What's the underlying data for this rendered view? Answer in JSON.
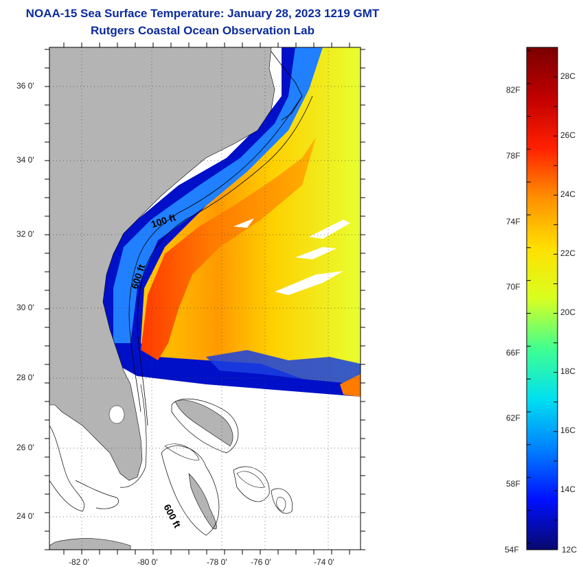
{
  "header": {
    "title_line1": "NOAA-15 Sea Surface Temperature:  January 28, 2023 1219 GMT",
    "title_line2": "Rutgers Coastal Ocean Observation Lab"
  },
  "map": {
    "lat_labels": [
      "36 0'",
      "34 0'",
      "32 0'",
      "30 0'",
      "28 0'",
      "26 0'",
      "24 0'"
    ],
    "lon_labels": [
      "-82 0'",
      "-80 0'",
      "-78 0'",
      "-76 0'",
      "-74 0'"
    ],
    "isobath_labels": [
      "100 ft",
      "600 ft",
      "600 ft"
    ],
    "land_color": "#b4b4b4",
    "nodata_color": "#ffffff"
  },
  "colorbar": {
    "fahrenheit_labels": [
      "82F",
      "78F",
      "74F",
      "70F",
      "66F",
      "62F",
      "58F",
      "54F"
    ],
    "celsius_labels": [
      "28C",
      "26C",
      "24C",
      "22C",
      "20C",
      "18C",
      "16C",
      "14C",
      "12C"
    ],
    "min_c": 12,
    "max_c": 29,
    "colors": [
      "#08086e",
      "#0010ff",
      "#0080ff",
      "#00e0f0",
      "#40ff90",
      "#d8ff20",
      "#ffe000",
      "#ff9000",
      "#ff2000",
      "#c00000",
      "#7a0000"
    ]
  }
}
